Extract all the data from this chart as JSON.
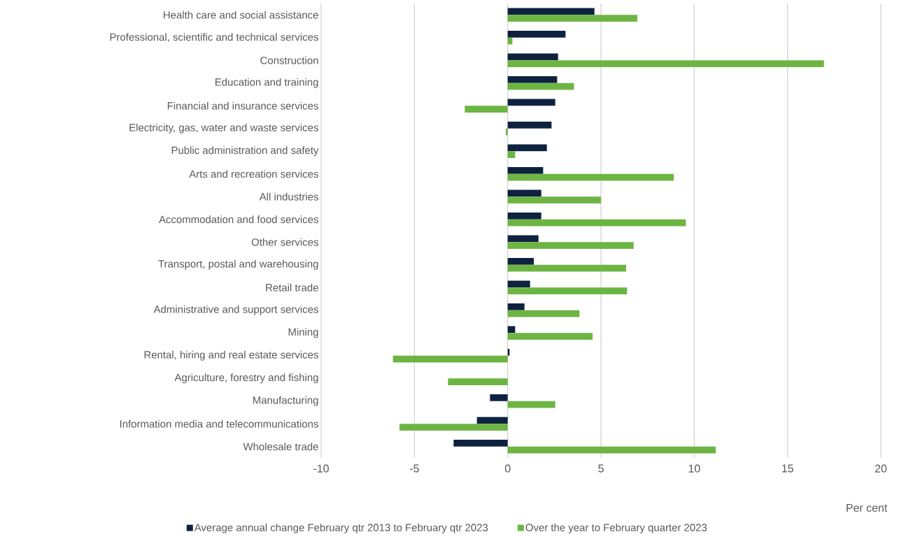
{
  "chart_data": {
    "type": "bar",
    "orientation": "horizontal",
    "xlabel": "Per cent",
    "categories": [
      "Health care and social assistance",
      "Professional, scientific and technical services",
      "Construction",
      "Education and training",
      "Financial and insurance services",
      "Electricity, gas, water and waste services",
      "Public administration and safety",
      "Arts and recreation services",
      "All industries",
      "Accommodation and food services",
      "Other services",
      "Transport, postal and warehousing",
      "Retail trade",
      "Administrative and support services",
      "Mining",
      "Rental, hiring and real estate services",
      "Agriculture, forestry and fishing",
      "Manufacturing",
      "Information media and telecommunications",
      "Wholesale trade"
    ],
    "series": [
      {
        "name": "Average annual change February qtr 2013 to February qtr 2023",
        "color": "#0e2240",
        "values": [
          4.65,
          3.1,
          2.7,
          2.65,
          2.55,
          2.35,
          2.1,
          1.9,
          1.8,
          1.8,
          1.65,
          1.4,
          1.2,
          0.9,
          0.4,
          0.1,
          0,
          -0.95,
          -1.65,
          -2.9
        ]
      },
      {
        "name": "Over the year to February quarter 2023",
        "color": "#6db543",
        "values": [
          6.95,
          0.25,
          16.95,
          3.55,
          -2.3,
          -0.1,
          0.4,
          8.9,
          5.0,
          9.55,
          6.75,
          6.35,
          6.4,
          3.85,
          4.55,
          -6.15,
          -3.2,
          2.55,
          -5.8,
          11.15
        ]
      }
    ],
    "xlim": [
      -10,
      20
    ],
    "xticks": [
      -10,
      -5,
      0,
      5,
      10,
      15,
      20
    ],
    "grid": "x",
    "legend": "bottom"
  }
}
